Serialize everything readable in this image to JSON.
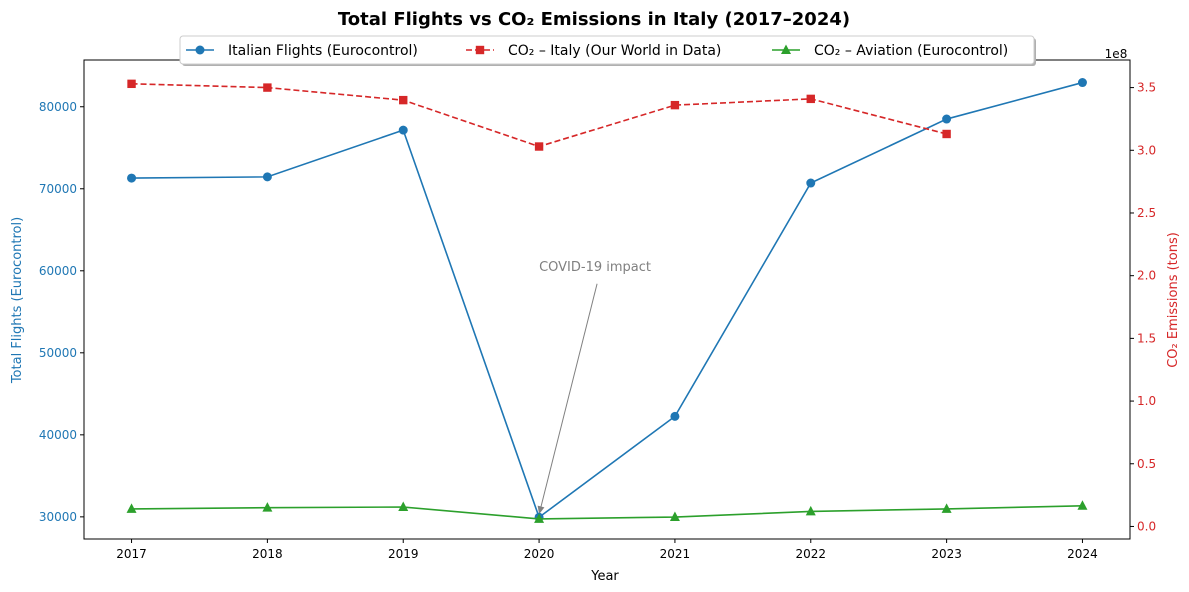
{
  "chart_data": {
    "type": "line",
    "title": "Total Flights vs CO₂ Emissions in Italy (2017–2024)",
    "xlabel": "Year",
    "ylabel_left": "Total Flights (Eurocontrol)",
    "ylabel_right": "CO₂ Emissions (tons)",
    "right_axis_multiplier": "1e8",
    "x": [
      2017,
      2018,
      2019,
      2020,
      2021,
      2022,
      2023,
      2024
    ],
    "y_left_ticks": [
      30000,
      40000,
      50000,
      60000,
      70000,
      80000
    ],
    "y_right_ticks": [
      0.0,
      0.5,
      1.0,
      1.5,
      2.0,
      2.5,
      3.0,
      3.5
    ],
    "y_right_tick_labels": [
      "0.0",
      "0.5",
      "1.0",
      "1.5",
      "2.0",
      "2.5",
      "3.0",
      "3.5"
    ],
    "ylim_left": [
      27300,
      85700
    ],
    "ylim_right": [
      -0.1,
      3.72
    ],
    "grid": false,
    "legend_position": "top-center",
    "series": [
      {
        "name": "Italian Flights (Eurocontrol)",
        "axis": "left",
        "color": "#1f77b4",
        "marker": "circle",
        "dash": "solid",
        "values": [
          71300,
          71450,
          77150,
          29950,
          42250,
          70700,
          78500,
          82950
        ]
      },
      {
        "name": "CO₂ – Italy (Our World in Data)",
        "axis": "right",
        "color": "#d62728",
        "marker": "square",
        "dash": "dashed",
        "values": [
          3.53,
          3.5,
          3.4,
          3.03,
          3.36,
          3.41,
          3.13,
          null
        ]
      },
      {
        "name": "CO₂ – Aviation (Eurocontrol)",
        "axis": "right",
        "color": "#2ca02c",
        "marker": "triangle",
        "dash": "solid",
        "values": [
          0.14,
          0.15,
          0.155,
          0.06,
          0.075,
          0.12,
          0.14,
          0.165
        ]
      }
    ],
    "annotation": {
      "text": "COVID-19 impact",
      "target_x": 2020,
      "target_y_left": 29950,
      "text_x": 2020,
      "text_y_left": 60000,
      "color": "#808080"
    }
  }
}
